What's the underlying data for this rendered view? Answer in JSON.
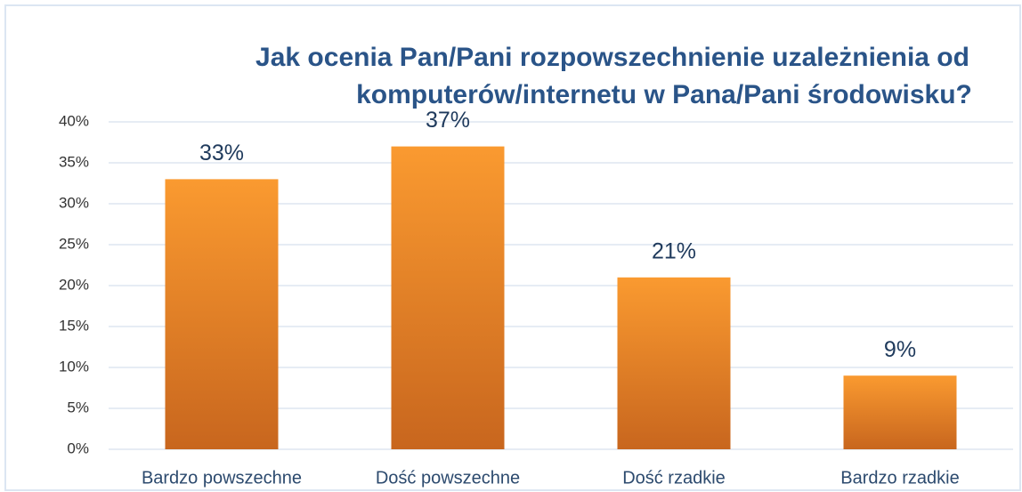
{
  "chart_data": {
    "type": "bar",
    "title": [
      "Jak ocenia Pan/Pani rozpowszechnienie uzależnienia od",
      "komputerów/internetu w Pana/Pani środowisku?"
    ],
    "categories": [
      "Bardzo powszechne",
      "Dość powszechne",
      "Dość rzadkie",
      "Bardzo rzadkie"
    ],
    "values": [
      33,
      37,
      21,
      9
    ],
    "value_labels": [
      "33%",
      "37%",
      "21%",
      "9%"
    ],
    "color": "#f7962e",
    "ylim": [
      0,
      40
    ],
    "yticks": [
      {
        "value": 0,
        "label": "0%"
      },
      {
        "value": 5,
        "label": "5%"
      },
      {
        "value": 10,
        "label": "10%"
      },
      {
        "value": 15,
        "label": "15%"
      },
      {
        "value": 20,
        "label": "20%"
      },
      {
        "value": 25,
        "label": "25%"
      },
      {
        "value": 30,
        "label": "30%"
      },
      {
        "value": 35,
        "label": "35%"
      },
      {
        "value": 40,
        "label": "40%"
      }
    ],
    "grid": true
  }
}
